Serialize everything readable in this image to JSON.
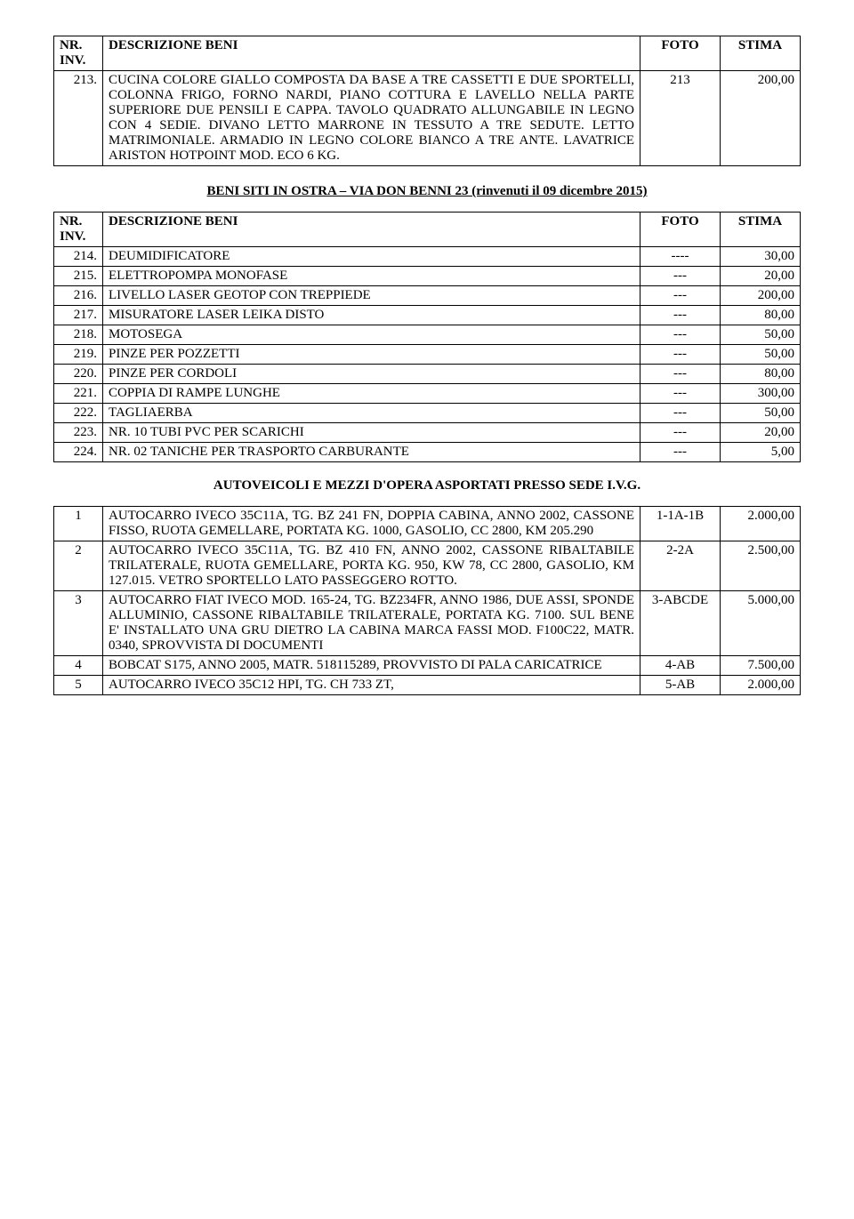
{
  "header": {
    "nr": "NR. INV.",
    "desc": "DESCRIZIONE BENI",
    "foto": "FOTO",
    "stima": "STIMA"
  },
  "table1_rows": [
    {
      "nr": "213.",
      "desc": "CUCINA COLORE GIALLO COMPOSTA DA BASE A TRE CASSETTI E DUE SPORTELLI, COLONNA FRIGO, FORNO NARDI, PIANO COTTURA E LAVELLO NELLA PARTE SUPERIORE DUE PENSILI E CAPPA. TAVOLO QUADRATO ALLUNGABILE IN LEGNO CON 4 SEDIE. DIVANO LETTO MARRONE IN TESSUTO A TRE SEDUTE. LETTO MATRIMONIALE. ARMADIO IN LEGNO COLORE BIANCO A TRE ANTE. LAVATRICE ARISTON HOTPOINT MOD. ECO 6 KG.",
      "foto": "213",
      "stima": "200,00"
    }
  ],
  "section2_title": "BENI SITI IN OSTRA – VIA DON BENNI 23 (rinvenuti il 09 dicembre 2015)",
  "table2_rows": [
    {
      "nr": "214.",
      "desc": "DEUMIDIFICATORE",
      "foto": "----",
      "stima": "30,00"
    },
    {
      "nr": "215.",
      "desc": "ELETTROPOMPA MONOFASE",
      "foto": "---",
      "stima": "20,00"
    },
    {
      "nr": "216.",
      "desc": "LIVELLO LASER GEOTOP CON TREPPIEDE",
      "foto": "---",
      "stima": "200,00"
    },
    {
      "nr": "217.",
      "desc": "MISURATORE LASER LEIKA DISTO",
      "foto": "---",
      "stima": "80,00"
    },
    {
      "nr": "218.",
      "desc": "MOTOSEGA",
      "foto": "---",
      "stima": "50,00"
    },
    {
      "nr": "219.",
      "desc": "PINZE PER POZZETTI",
      "foto": "---",
      "stima": "50,00"
    },
    {
      "nr": "220.",
      "desc": "PINZE PER CORDOLI",
      "foto": "---",
      "stima": "80,00"
    },
    {
      "nr": "221.",
      "desc": "COPPIA DI RAMPE LUNGHE",
      "foto": "---",
      "stima": "300,00"
    },
    {
      "nr": "222.",
      "desc": "TAGLIAERBA",
      "foto": "---",
      "stima": "50,00"
    },
    {
      "nr": "223.",
      "desc": "NR. 10 TUBI PVC PER SCARICHI",
      "foto": "---",
      "stima": "20,00"
    },
    {
      "nr": "224.",
      "desc": "NR. 02 TANICHE PER TRASPORTO CARBURANTE",
      "foto": "---",
      "stima": "5,00"
    }
  ],
  "section3_title": "AUTOVEICOLI E MEZZI D'OPERA ASPORTATI PRESSO SEDE I.V.G.",
  "table3_rows": [
    {
      "nr": "1",
      "desc": "AUTOCARRO IVECO 35C11A, TG. BZ 241 FN, DOPPIA CABINA, ANNO 2002, CASSONE FISSO, RUOTA GEMELLARE, PORTATA KG. 1000, GASOLIO, CC 2800, KM 205.290",
      "foto": "1-1A-1B",
      "stima": "2.000,00"
    },
    {
      "nr": "2",
      "desc": "AUTOCARRO IVECO 35C11A, TG. BZ 410 FN, ANNO 2002, CASSONE RIBALTABILE TRILATERALE, RUOTA GEMELLARE, PORTA KG. 950, KW 78, CC 2800, GASOLIO, KM 127.015. VETRO SPORTELLO LATO PASSEGGERO ROTTO.",
      "foto": "2-2A",
      "stima": "2.500,00"
    },
    {
      "nr": "3",
      "desc": "AUTOCARRO FIAT IVECO MOD. 165-24, TG. BZ234FR, ANNO 1986, DUE ASSI, SPONDE ALLUMINIO, CASSONE RIBALTABILE TRILATERALE, PORTATA KG. 7100. SUL BENE E' INSTALLATO UNA GRU DIETRO LA CABINA MARCA FASSI MOD. F100C22, MATR. 0340, SPROVVISTA DI DOCUMENTI",
      "foto": "3-ABCDE",
      "stima": "5.000,00"
    },
    {
      "nr": "4",
      "desc": "BOBCAT S175, ANNO 2005, MATR. 518115289, PROVVISTO DI PALA CARICATRICE",
      "foto": "4-AB",
      "stima": "7.500,00"
    },
    {
      "nr": "5",
      "desc": "AUTOCARRO IVECO 35C12 HPI, TG. CH 733 ZT,",
      "foto": "5-AB",
      "stima": "2.000,00"
    }
  ]
}
